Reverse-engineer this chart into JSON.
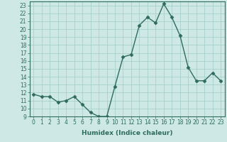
{
  "x": [
    0,
    1,
    2,
    3,
    4,
    5,
    6,
    7,
    8,
    9,
    10,
    11,
    12,
    13,
    14,
    15,
    16,
    17,
    18,
    19,
    20,
    21,
    22,
    23
  ],
  "y": [
    11.8,
    11.5,
    11.5,
    10.8,
    11.0,
    11.5,
    10.5,
    9.5,
    9.0,
    9.0,
    12.8,
    16.5,
    16.8,
    20.5,
    21.5,
    20.8,
    23.2,
    21.5,
    19.2,
    15.2,
    13.5,
    13.5,
    14.5,
    13.5
  ],
  "line_color": "#2e6b5e",
  "marker": "D",
  "markersize": 2.5,
  "linewidth": 1.0,
  "xlabel": "Humidex (Indice chaleur)",
  "ylabel": "",
  "xlim": [
    -0.5,
    23.5
  ],
  "ylim": [
    9,
    23.5
  ],
  "yticks": [
    9,
    10,
    11,
    12,
    13,
    14,
    15,
    16,
    17,
    18,
    19,
    20,
    21,
    22,
    23
  ],
  "xticks": [
    0,
    1,
    2,
    3,
    4,
    5,
    6,
    7,
    8,
    9,
    10,
    11,
    12,
    13,
    14,
    15,
    16,
    17,
    18,
    19,
    20,
    21,
    22,
    23
  ],
  "bg_color": "#cee9e5",
  "grid_color": "#a0ccc8",
  "tick_fontsize": 5.5,
  "xlabel_fontsize": 6.5
}
